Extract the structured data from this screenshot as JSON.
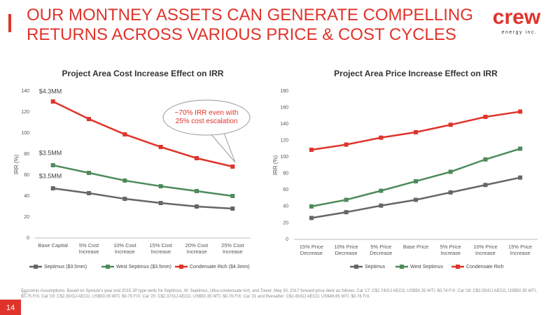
{
  "title": "OUR MONTNEY ASSETS CAN GENERATE COMPELLING RETURNS ACROSS VARIOUS PRICE & COST CYCLES",
  "logo": {
    "name": "crew",
    "tagline": "energy inc."
  },
  "footnote": {
    "marker": "(1)",
    "text": "Economic Assumptions: Based on Sproule's year end 2015 2P type wells for Septimus, W. Septimus, Ultra-condensate rich, and Tower; May 30, 2017 forward price deck as follows: Cal '17: C$2.74/GJ AECO, US$50.25 WTI, $0.74 F/X; Cal '18: C$2.55/GJ AECO, US$50.35 WTI, $0.75 F/X; Cal '19: C$2.35/GJ AECO, US$50.05 WTI, $0.75 F/X; Cal '20: C$2.37/GJ AECO, US$50.35 WTI, $0.76 F/X; Cal '21 and thereafter: C$2.45/GJ AECO, US$49.65 WTI, $0.76 F/X."
  },
  "page_number": "14",
  "chart_data": [
    {
      "type": "line",
      "title": "Project Area Cost Increase Effect on IRR",
      "y_label": "IRR (%)",
      "categories": [
        "Base Capital",
        "5% Cost Increase",
        "10% Cost Increase",
        "15% Cost Increase",
        "20% Cost Increase",
        "25% Cost Increase"
      ],
      "series": [
        {
          "name": "Septimus ($3.5mm)",
          "color": "#666666",
          "values": [
            47.3,
            42.7,
            37.3,
            33.3,
            30,
            28
          ]
        },
        {
          "name": "West Septimus ($3.5mm)",
          "color": "#4e8a5a",
          "values": [
            69.3,
            62,
            54.7,
            49.3,
            44.7,
            40
          ]
        },
        {
          "name": "Condensate Rich ($4.3mm)",
          "color": "#e0332b",
          "values": [
            130,
            113.3,
            98.7,
            86.7,
            76,
            68
          ]
        }
      ],
      "annotations": [
        "$4.3MM",
        "$3.5MM",
        "$3.5MM"
      ],
      "callout": "~70% IRR even with 25% cost escalation",
      "ylim": [
        0,
        140
      ],
      "yticks": [
        0,
        20,
        40,
        60,
        80,
        100,
        120,
        140
      ],
      "grid": false,
      "legend": "bottom"
    },
    {
      "type": "line",
      "title": "Project Area Price Increase Effect on IRR",
      "y_label": "IRR (%)",
      "categories": [
        "15% Price Decrease",
        "10% Price Decrease",
        "5% Price Decrease",
        "Base Price",
        "5% Price Increase",
        "10% Price Increase",
        "15% Price Increase"
      ],
      "series": [
        {
          "name": "Septimus",
          "color": "#666666",
          "values": [
            26,
            33,
            41,
            48,
            57,
            66,
            75
          ]
        },
        {
          "name": "West Septimus",
          "color": "#4e8a5a",
          "values": [
            40,
            48,
            59,
            70.5,
            82,
            97,
            110
          ]
        },
        {
          "name": "Condensate Rich",
          "color": "#e0332b",
          "values": [
            108.7,
            115,
            123.4,
            130,
            139,
            148.6,
            155
          ]
        }
      ],
      "ylim": [
        0,
        180
      ],
      "yticks": [
        0,
        20,
        40,
        60,
        80,
        100,
        120,
        140,
        160,
        180
      ],
      "grid": false,
      "legend": "bottom"
    }
  ]
}
